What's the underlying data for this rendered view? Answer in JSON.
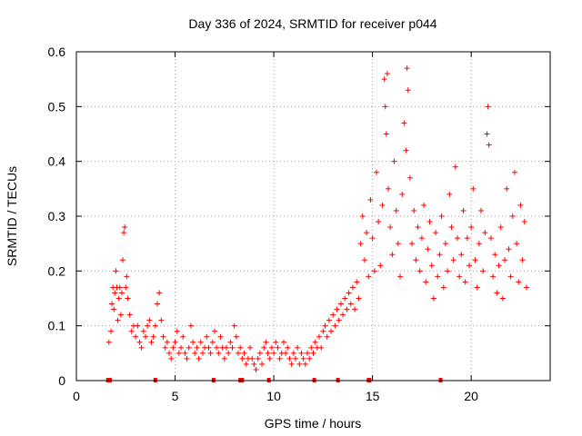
{
  "chart_data": {
    "type": "scatter",
    "title": "Day 336 of 2024, SRMTID for receiver p044",
    "xlabel": "GPS time / hours",
    "ylabel": "SRMTID / TECUs",
    "xlim": [
      0,
      24
    ],
    "ylim": [
      0,
      0.6
    ],
    "x_ticks": [
      0,
      5,
      10,
      15,
      20
    ],
    "y_ticks": [
      0,
      0.1,
      0.2,
      0.3,
      0.4,
      0.5,
      0.6
    ],
    "x_tick_labels": [
      "0",
      "5",
      "10",
      "15",
      "20"
    ],
    "y_tick_labels": [
      "0",
      "0.1",
      "0.2",
      "0.3",
      "0.4",
      "0.5",
      "0.6"
    ],
    "grid": true,
    "marker": "+",
    "color": "#ff0000",
    "series": [
      {
        "name": "SRMTID",
        "points": [
          [
            1.65,
            0.07
          ],
          [
            1.75,
            0.09
          ],
          [
            1.8,
            0.14
          ],
          [
            1.85,
            0.17
          ],
          [
            1.9,
            0.13
          ],
          [
            1.95,
            0.16
          ],
          [
            2.0,
            0.2
          ],
          [
            2.05,
            0.17
          ],
          [
            2.1,
            0.11
          ],
          [
            2.15,
            0.15
          ],
          [
            2.2,
            0.17
          ],
          [
            2.25,
            0.12
          ],
          [
            2.3,
            0.16
          ],
          [
            2.35,
            0.22
          ],
          [
            2.4,
            0.27
          ],
          [
            2.45,
            0.28
          ],
          [
            2.5,
            0.17
          ],
          [
            2.55,
            0.19
          ],
          [
            2.6,
            0.15
          ],
          [
            2.7,
            0.12
          ],
          [
            2.8,
            0.09
          ],
          [
            2.9,
            0.1
          ],
          [
            3.0,
            0.08
          ],
          [
            3.1,
            0.1
          ],
          [
            3.2,
            0.07
          ],
          [
            3.3,
            0.06
          ],
          [
            3.4,
            0.09
          ],
          [
            3.5,
            0.08
          ],
          [
            3.6,
            0.1
          ],
          [
            3.7,
            0.11
          ],
          [
            3.8,
            0.07
          ],
          [
            3.9,
            0.08
          ],
          [
            4.0,
            0.1
          ],
          [
            4.1,
            0.14
          ],
          [
            4.2,
            0.16
          ],
          [
            4.3,
            0.11
          ],
          [
            4.4,
            0.08
          ],
          [
            4.5,
            0.06
          ],
          [
            4.6,
            0.07
          ],
          [
            4.7,
            0.05
          ],
          [
            4.8,
            0.04
          ],
          [
            4.9,
            0.06
          ],
          [
            5.0,
            0.07
          ],
          [
            5.1,
            0.09
          ],
          [
            5.2,
            0.05
          ],
          [
            5.3,
            0.06
          ],
          [
            5.4,
            0.08
          ],
          [
            5.5,
            0.05
          ],
          [
            5.6,
            0.04
          ],
          [
            5.7,
            0.06
          ],
          [
            5.8,
            0.1
          ],
          [
            5.9,
            0.07
          ],
          [
            6.0,
            0.05
          ],
          [
            6.1,
            0.06
          ],
          [
            6.2,
            0.04
          ],
          [
            6.3,
            0.07
          ],
          [
            6.4,
            0.05
          ],
          [
            6.5,
            0.06
          ],
          [
            6.6,
            0.08
          ],
          [
            6.7,
            0.06
          ],
          [
            6.8,
            0.05
          ],
          [
            6.9,
            0.07
          ],
          [
            7.0,
            0.09
          ],
          [
            7.1,
            0.06
          ],
          [
            7.2,
            0.05
          ],
          [
            7.3,
            0.08
          ],
          [
            7.4,
            0.06
          ],
          [
            7.5,
            0.04
          ],
          [
            7.6,
            0.06
          ],
          [
            7.7,
            0.05
          ],
          [
            7.8,
            0.07
          ],
          [
            7.9,
            0.06
          ],
          [
            8.0,
            0.1
          ],
          [
            8.1,
            0.08
          ],
          [
            8.2,
            0.05
          ],
          [
            8.3,
            0.06
          ],
          [
            8.4,
            0.04
          ],
          [
            8.5,
            0.05
          ],
          [
            8.6,
            0.03
          ],
          [
            8.7,
            0.04
          ],
          [
            8.8,
            0.06
          ],
          [
            8.9,
            0.04
          ],
          [
            9.0,
            0.03
          ],
          [
            9.1,
            0.02
          ],
          [
            9.2,
            0.04
          ],
          [
            9.3,
            0.05
          ],
          [
            9.4,
            0.03
          ],
          [
            9.5,
            0.06
          ],
          [
            9.6,
            0.07
          ],
          [
            9.7,
            0.05
          ],
          [
            9.8,
            0.04
          ],
          [
            9.9,
            0.06
          ],
          [
            10.0,
            0.05
          ],
          [
            10.1,
            0.07
          ],
          [
            10.2,
            0.06
          ],
          [
            10.3,
            0.04
          ],
          [
            10.4,
            0.05
          ],
          [
            10.5,
            0.07
          ],
          [
            10.6,
            0.05
          ],
          [
            10.7,
            0.06
          ],
          [
            10.8,
            0.04
          ],
          [
            10.9,
            0.03
          ],
          [
            11.0,
            0.05
          ],
          [
            11.1,
            0.04
          ],
          [
            11.2,
            0.06
          ],
          [
            11.3,
            0.03
          ],
          [
            11.4,
            0.05
          ],
          [
            11.5,
            0.04
          ],
          [
            11.6,
            0.03
          ],
          [
            11.7,
            0.05
          ],
          [
            11.8,
            0.04
          ],
          [
            11.9,
            0.06
          ],
          [
            12.0,
            0.05
          ],
          [
            12.1,
            0.07
          ],
          [
            12.2,
            0.06
          ],
          [
            12.3,
            0.08
          ],
          [
            12.4,
            0.06
          ],
          [
            12.5,
            0.09
          ],
          [
            12.6,
            0.1
          ],
          [
            12.7,
            0.08
          ],
          [
            12.8,
            0.11
          ],
          [
            12.9,
            0.09
          ],
          [
            13.0,
            0.12
          ],
          [
            13.1,
            0.1
          ],
          [
            13.2,
            0.13
          ],
          [
            13.3,
            0.11
          ],
          [
            13.4,
            0.14
          ],
          [
            13.5,
            0.12
          ],
          [
            13.6,
            0.15
          ],
          [
            13.7,
            0.13
          ],
          [
            13.8,
            0.16
          ],
          [
            13.9,
            0.14
          ],
          [
            14.0,
            0.17
          ],
          [
            14.1,
            0.13
          ],
          [
            14.2,
            0.18
          ],
          [
            14.3,
            0.15
          ],
          [
            14.4,
            0.25
          ],
          [
            14.5,
            0.3
          ],
          [
            14.6,
            0.22
          ],
          [
            14.7,
            0.27
          ],
          [
            14.8,
            0.19
          ],
          [
            14.9,
            0.33
          ],
          [
            15.0,
            0.26
          ],
          [
            15.1,
            0.2
          ],
          [
            15.2,
            0.38
          ],
          [
            15.3,
            0.29
          ],
          [
            15.4,
            0.21
          ],
          [
            15.5,
            0.32
          ],
          [
            15.6,
            0.55
          ],
          [
            15.65,
            0.5
          ],
          [
            15.7,
            0.45
          ],
          [
            15.75,
            0.56
          ],
          [
            15.8,
            0.35
          ],
          [
            15.9,
            0.28
          ],
          [
            16.0,
            0.23
          ],
          [
            16.1,
            0.4
          ],
          [
            16.2,
            0.31
          ],
          [
            16.3,
            0.25
          ],
          [
            16.4,
            0.19
          ],
          [
            16.5,
            0.34
          ],
          [
            16.6,
            0.47
          ],
          [
            16.7,
            0.42
          ],
          [
            16.75,
            0.57
          ],
          [
            16.8,
            0.53
          ],
          [
            16.9,
            0.37
          ],
          [
            17.0,
            0.25
          ],
          [
            17.1,
            0.31
          ],
          [
            17.2,
            0.22
          ],
          [
            17.3,
            0.28
          ],
          [
            17.4,
            0.2
          ],
          [
            17.5,
            0.26
          ],
          [
            17.6,
            0.32
          ],
          [
            17.7,
            0.18
          ],
          [
            17.8,
            0.24
          ],
          [
            17.9,
            0.29
          ],
          [
            18.0,
            0.21
          ],
          [
            18.1,
            0.15
          ],
          [
            18.2,
            0.27
          ],
          [
            18.3,
            0.19
          ],
          [
            18.4,
            0.23
          ],
          [
            18.5,
            0.3
          ],
          [
            18.6,
            0.17
          ],
          [
            18.7,
            0.25
          ],
          [
            18.8,
            0.2
          ],
          [
            18.9,
            0.34
          ],
          [
            19.0,
            0.28
          ],
          [
            19.1,
            0.22
          ],
          [
            19.2,
            0.39
          ],
          [
            19.3,
            0.26
          ],
          [
            19.4,
            0.19
          ],
          [
            19.5,
            0.23
          ],
          [
            19.6,
            0.31
          ],
          [
            19.7,
            0.18
          ],
          [
            19.8,
            0.26
          ],
          [
            19.9,
            0.21
          ],
          [
            20.0,
            0.28
          ],
          [
            20.1,
            0.35
          ],
          [
            20.2,
            0.22
          ],
          [
            20.3,
            0.17
          ],
          [
            20.4,
            0.25
          ],
          [
            20.5,
            0.31
          ],
          [
            20.6,
            0.2
          ],
          [
            20.7,
            0.27
          ],
          [
            20.8,
            0.45
          ],
          [
            20.85,
            0.5
          ],
          [
            20.9,
            0.43
          ],
          [
            21.0,
            0.26
          ],
          [
            21.1,
            0.19
          ],
          [
            21.2,
            0.23
          ],
          [
            21.3,
            0.16
          ],
          [
            21.4,
            0.21
          ],
          [
            21.5,
            0.28
          ],
          [
            21.6,
            0.15
          ],
          [
            21.7,
            0.22
          ],
          [
            21.8,
            0.35
          ],
          [
            21.9,
            0.24
          ],
          [
            22.0,
            0.19
          ],
          [
            22.1,
            0.3
          ],
          [
            22.2,
            0.38
          ],
          [
            22.3,
            0.25
          ],
          [
            22.4,
            0.18
          ],
          [
            22.5,
            0.32
          ],
          [
            22.6,
            0.22
          ],
          [
            22.7,
            0.29
          ],
          [
            22.8,
            0.17
          ]
        ]
      }
    ],
    "baseline_markers": [
      1.6,
      1.7,
      4.0,
      6.95,
      8.3,
      8.4,
      9.75,
      12.05,
      13.25,
      14.8,
      14.85,
      18.45
    ]
  }
}
